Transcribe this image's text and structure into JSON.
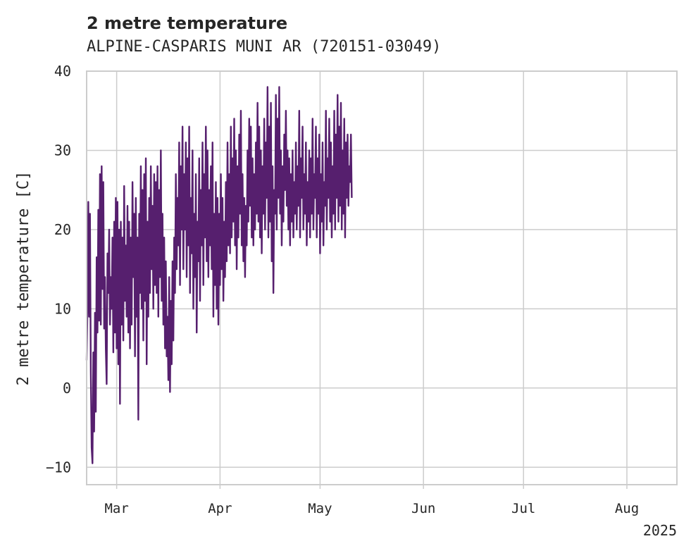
{
  "chart_data": {
    "type": "line",
    "title": "2 metre temperature",
    "subtitle": "ALPINE-CASPARIS MUNI AR (720151-03049)",
    "ylabel": "2 metre temperature [C]",
    "xlabel": "",
    "ylim": [
      -12.2,
      40
    ],
    "yticks": [
      -10,
      0,
      10,
      20,
      30,
      40
    ],
    "xlim": [
      "2025-02-20",
      "2025-08-16"
    ],
    "xticks": [
      {
        "date": "2025-03-01",
        "label": "Mar"
      },
      {
        "date": "2025-04-01",
        "label": "Apr"
      },
      {
        "date": "2025-05-01",
        "label": "May"
      },
      {
        "date": "2025-06-01",
        "label": "Jun"
      },
      {
        "date": "2025-07-01",
        "label": "Jul"
      },
      {
        "date": "2025-08-01",
        "label": "Aug"
      }
    ],
    "year_label": "2025",
    "grid": true,
    "color": "#561f6e",
    "series": [
      {
        "step_hours": 6,
        "x_start": "2025-02-20T00:00",
        "values": [
          3.5,
          10,
          23.5,
          9,
          22,
          2,
          -7.5,
          -9.5,
          4.5,
          -5.5,
          9.5,
          -3,
          16.5,
          7,
          22.5,
          8.5,
          27,
          8,
          28,
          12.5,
          26,
          7.5,
          14,
          5,
          0.5,
          17,
          12,
          20,
          8,
          14,
          10,
          19,
          4.5,
          21,
          7,
          24,
          5,
          23.5,
          3,
          20,
          -2,
          21,
          8,
          19,
          6,
          25.5,
          11,
          18,
          9,
          23,
          7,
          21,
          5,
          19,
          8,
          26,
          14,
          22,
          4,
          24,
          9,
          19,
          -4,
          22,
          12,
          28,
          10,
          25,
          6,
          27,
          11,
          29,
          3,
          21,
          9,
          24,
          12,
          28,
          15,
          23,
          10,
          27,
          13,
          26,
          12,
          28,
          9,
          25,
          14,
          30,
          11,
          22,
          8,
          19,
          5,
          16,
          4,
          9,
          1,
          14,
          -0.5,
          11,
          3,
          16,
          6,
          19,
          12,
          27,
          15,
          24,
          18,
          31,
          13,
          28,
          20,
          33,
          15,
          27,
          20,
          31,
          14,
          29,
          18,
          33,
          12,
          24,
          17,
          30,
          10,
          22,
          14,
          27,
          7,
          21,
          16,
          29,
          11,
          25,
          18,
          31,
          13,
          27,
          19,
          33,
          16,
          30,
          14,
          25,
          18,
          28,
          15,
          31,
          9,
          22,
          13,
          26,
          10,
          24,
          8,
          22,
          13,
          27,
          15,
          24,
          11,
          21,
          14,
          26,
          16,
          31,
          18,
          27,
          17,
          33,
          19,
          29,
          21,
          34,
          18,
          30,
          15,
          28,
          19,
          32,
          22,
          35,
          18,
          27,
          16,
          24,
          14,
          23,
          18,
          30,
          21,
          34,
          23,
          33,
          19,
          29,
          18,
          27,
          20,
          31,
          22,
          36,
          21,
          33,
          19,
          30,
          17,
          28,
          22,
          34,
          20,
          31,
          24,
          38,
          19,
          33,
          21,
          36,
          16,
          28,
          12,
          25,
          22,
          37,
          20,
          34,
          24,
          38,
          22,
          30,
          18,
          28,
          21,
          32,
          25,
          35,
          23,
          30,
          20,
          29,
          18,
          27,
          21,
          30,
          19,
          26,
          22,
          31,
          20,
          28,
          23,
          35,
          19,
          29,
          24,
          33,
          20,
          27,
          22,
          31,
          18,
          26,
          21,
          30,
          19,
          29,
          22,
          34,
          20,
          27,
          24,
          33,
          19,
          29,
          22,
          32,
          17,
          27,
          21,
          31,
          18,
          26,
          23,
          35,
          20,
          29,
          24,
          34,
          21,
          31,
          19,
          28,
          22,
          35,
          20,
          32,
          24,
          37,
          21,
          33,
          23,
          36,
          20,
          30,
          22,
          34,
          19,
          31,
          24,
          32,
          23,
          28,
          26,
          32,
          24
        ]
      }
    ]
  }
}
